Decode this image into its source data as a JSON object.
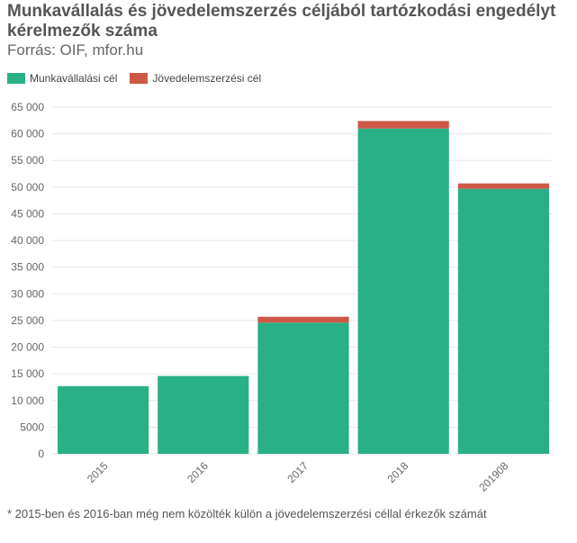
{
  "title": "Munkavállalás és jövedelemszerzés céljából tartózkodási engedélyt kérelmezők száma",
  "subtitle": "Forrás: OIF, mfor.hu",
  "footnote": "* 2015-ben és 2016-ban még nem közölték külön a jövedelemszerzési céllal érkezők számát",
  "colors": {
    "work": "#2ab087",
    "income": "#cc5845",
    "grid": "#e6e6e6",
    "tick": "#666666"
  },
  "chart_data": {
    "type": "bar",
    "stacked": true,
    "categories": [
      "2015",
      "2016",
      "2017",
      "2018",
      "201908"
    ],
    "series": [
      {
        "name": "Munkavállalási cél",
        "values": [
          12700,
          14600,
          24600,
          61000,
          49700
        ]
      },
      {
        "name": "Jövedelemszerzési cél",
        "values": [
          0,
          0,
          1100,
          1400,
          1000
        ]
      }
    ],
    "ylim": [
      0,
      65000
    ],
    "yticks": [
      "0",
      "5000",
      "10 000",
      "15 000",
      "20 000",
      "25 000",
      "30 000",
      "35 000",
      "40 000",
      "45 000",
      "50 000",
      "55 000",
      "60 000",
      "65 000"
    ],
    "grid": true,
    "legend_position": "top-left"
  }
}
